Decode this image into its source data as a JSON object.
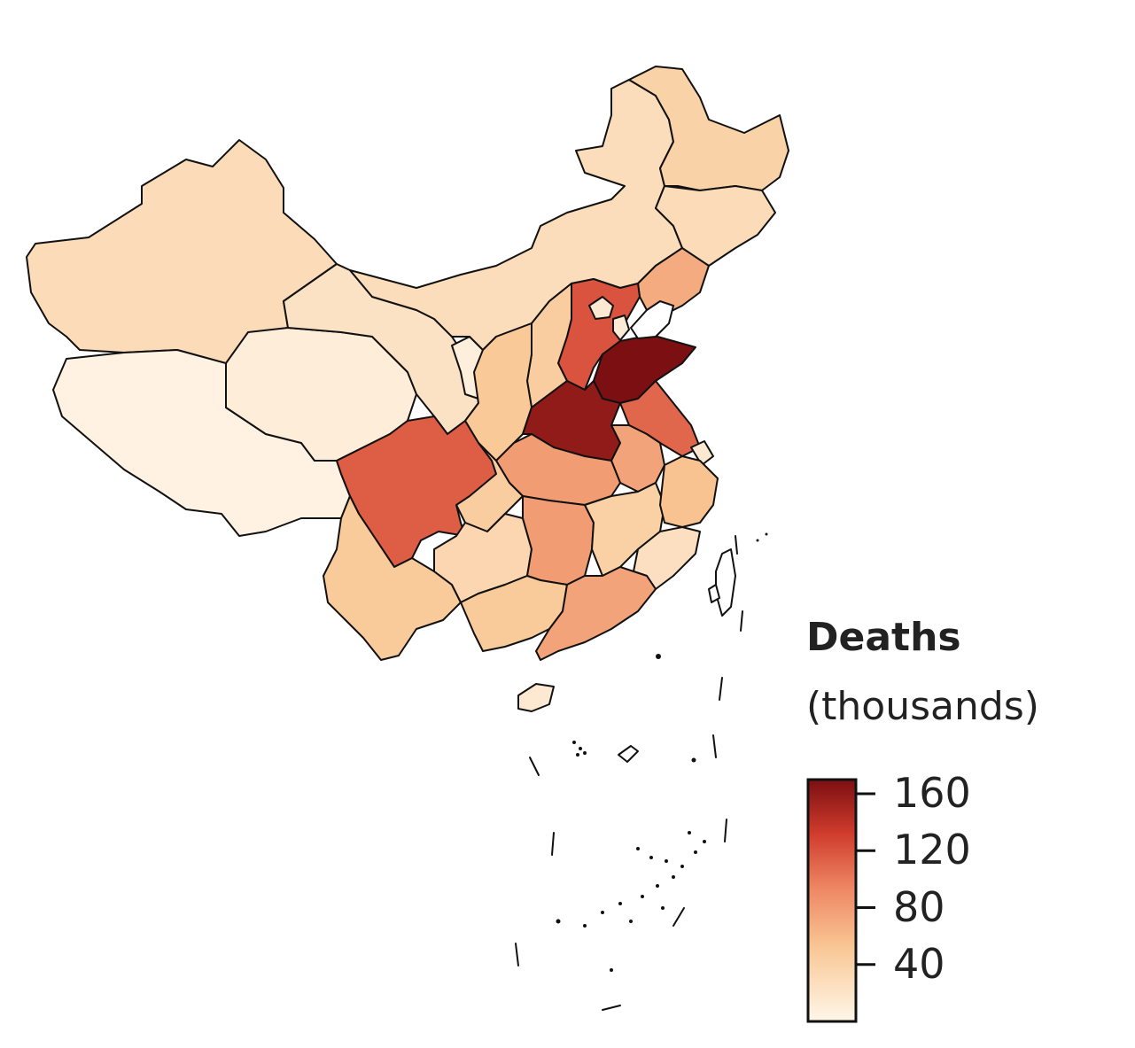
{
  "legend": {
    "title": "Deaths",
    "subtitle": "(thousands)",
    "ticks": [
      {
        "label": "160",
        "value": 160
      },
      {
        "label": "120",
        "value": 120
      },
      {
        "label": "80",
        "value": 80
      },
      {
        "label": "40",
        "value": 40
      }
    ],
    "min": 0,
    "max": 170,
    "color_low": "#fff6e9",
    "color_high": "#7b0f12"
  },
  "regions": [
    {
      "id": "xinjiang",
      "value": 30
    },
    {
      "id": "tibet",
      "value": 4
    },
    {
      "id": "qinghai",
      "value": 10
    },
    {
      "id": "gansu",
      "value": 22
    },
    {
      "id": "ningxia",
      "value": 8
    },
    {
      "id": "inner-mongolia",
      "value": 28
    },
    {
      "id": "heilongjiang",
      "value": 40
    },
    {
      "id": "jilin",
      "value": 30
    },
    {
      "id": "liaoning",
      "value": 70
    },
    {
      "id": "hebei",
      "value": 120
    },
    {
      "id": "beijing",
      "value": 15
    },
    {
      "id": "tianjin",
      "value": 12
    },
    {
      "id": "shanxi",
      "value": 45
    },
    {
      "id": "shaanxi",
      "value": 50
    },
    {
      "id": "shandong",
      "value": 170
    },
    {
      "id": "henan",
      "value": 160
    },
    {
      "id": "jiangsu",
      "value": 110
    },
    {
      "id": "shanghai",
      "value": 14
    },
    {
      "id": "anhui",
      "value": 75
    },
    {
      "id": "hubei",
      "value": 80
    },
    {
      "id": "chongqing",
      "value": 45
    },
    {
      "id": "sichuan",
      "value": 115
    },
    {
      "id": "yunnan",
      "value": 48
    },
    {
      "id": "guizhou",
      "value": 35
    },
    {
      "id": "hunan",
      "value": 80
    },
    {
      "id": "jiangxi",
      "value": 42
    },
    {
      "id": "zhejiang",
      "value": 55
    },
    {
      "id": "fujian",
      "value": 25
    },
    {
      "id": "guangxi",
      "value": 48
    },
    {
      "id": "guangdong",
      "value": 75
    },
    {
      "id": "hainan",
      "value": 15
    },
    {
      "id": "taiwan",
      "value": 0
    }
  ]
}
